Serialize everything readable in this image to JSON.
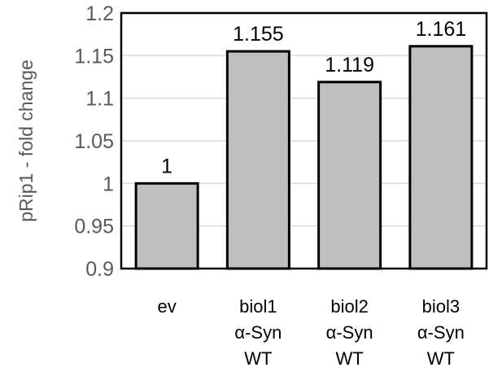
{
  "chart_data": {
    "type": "bar",
    "title": "",
    "xlabel": "",
    "ylabel": "pRip1 - fold change",
    "ylim": [
      0.9,
      1.2
    ],
    "yticks": [
      0.9,
      0.95,
      1,
      1.05,
      1.1,
      1.15,
      1.2
    ],
    "ytick_labels": [
      "0.9",
      "0.95",
      "1",
      "1.05",
      "1.1",
      "1.15",
      "1.2"
    ],
    "categories": [
      [
        "ev"
      ],
      [
        "biol1",
        "α-Syn",
        "WT"
      ],
      [
        "biol2",
        "α-Syn",
        "WT"
      ],
      [
        "biol3",
        "α-Syn",
        "WT"
      ]
    ],
    "values": [
      1,
      1.155,
      1.119,
      1.161
    ],
    "data_labels": [
      "1",
      "1.155",
      "1.119",
      "1.161"
    ],
    "grid": true,
    "legend": "none",
    "bar_color": "#bfbfbf",
    "bar_edge_color": "#000000",
    "grid_color": "#d9d9d9",
    "frame_color": "#000000"
  }
}
